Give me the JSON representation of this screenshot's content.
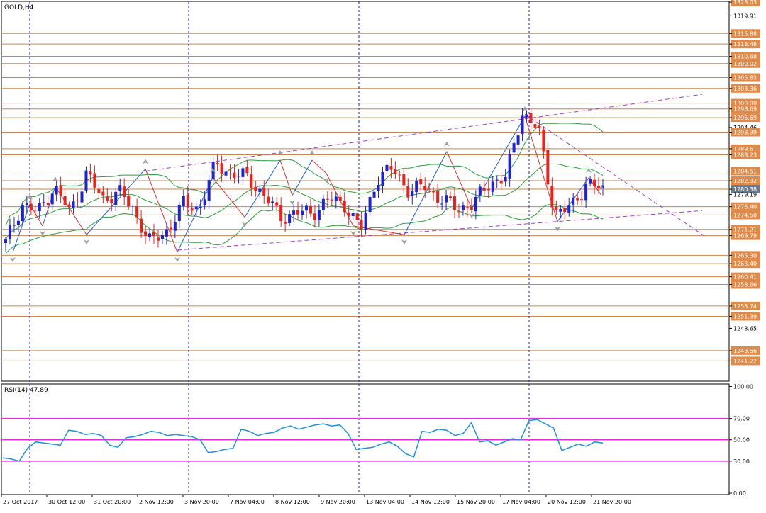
{
  "main_panel": {
    "title": "GOLD,H4",
    "price_ticks": [
      "1323.03",
      "1319.91",
      "1315.88",
      "1313.48",
      "1310.68",
      "1309.02",
      "1305.83",
      "1303.36",
      "1300.00",
      "1298.69",
      "1296.69",
      "1294.46",
      "1293.39",
      "1289.61",
      "1288.23",
      "1284.51",
      "1282.32",
      "1280.38",
      "1279.19",
      "1276.40",
      "1274.50",
      "1271.21",
      "1269.79",
      "1265.30",
      "1263.40",
      "1260.41",
      "1258.66",
      "1253.74",
      "1251.39",
      "1248.65",
      "1243.56",
      "1241.22"
    ],
    "highlighted_price": "1280.38"
  },
  "rsi_panel": {
    "label": "RSI(14) 47.89",
    "ticks": [
      "100.00",
      "70.00",
      "50.00",
      "30.00",
      "0.00"
    ]
  },
  "x_axis_labels": [
    "27 Oct 2017",
    "30 Oct 12:00",
    "31 Oct 20:00",
    "2 Nov 12:00",
    "3 Nov 20:00",
    "7 Nov 04:00",
    "8 Nov 12:00",
    "9 Nov 20:00",
    "13 Nov 04:00",
    "14 Nov 12:00",
    "15 Nov 20:00",
    "17 Nov 04:00",
    "20 Nov 12:00",
    "21 Nov 20:00"
  ],
  "colors": {
    "bull_candle": "#1e22d2",
    "bear_candle": "#e8231c",
    "level_line": "#c8864a",
    "grid_line": "#2020d0",
    "bollinger": "#2e9e3e",
    "zigzag_up": "#1e5bd8",
    "zigzag_down": "#d83030",
    "trendline": "#a040c8",
    "rsi_line": "#1e90e0",
    "rsi_levels": "#e030e0",
    "label_fill": "#e08a4a",
    "fractal": "#a0a0a0"
  },
  "chart_data": [
    {
      "type": "candlestick",
      "title": "GOLD,H4",
      "x": [
        "27 Oct 2017",
        "30 Oct 12:00",
        "31 Oct 20:00",
        "2 Nov 12:00",
        "3 Nov 20:00",
        "7 Nov 04:00",
        "8 Nov 12:00",
        "9 Nov 20:00",
        "13 Nov 04:00",
        "14 Nov 12:00",
        "15 Nov 20:00",
        "17 Nov 04:00",
        "20 Nov 12:00",
        "21 Nov 20:00"
      ],
      "ylim": [
        1236.6,
        1323.2
      ],
      "close_path": [
        1268,
        1277,
        1275,
        1281,
        1275,
        1284,
        1278,
        1280,
        1275,
        1268,
        1271,
        1277,
        1276,
        1286,
        1284,
        1283,
        1279,
        1274,
        1275,
        1275,
        1278,
        1277,
        1271,
        1283,
        1285,
        1280,
        1281,
        1278,
        1276,
        1277,
        1282,
        1283,
        1298,
        1294,
        1275,
        1276,
        1282,
        1280
      ],
      "horizontal_levels": [
        1315.88,
        1313.48,
        1310.68,
        1309.02,
        1305.83,
        1303.36,
        1300.0,
        1298.69,
        1296.69,
        1293.39,
        1289.61,
        1288.23,
        1284.51,
        1282.32,
        1280.38,
        1276.4,
        1274.5,
        1271.21,
        1269.79,
        1265.3,
        1263.4,
        1260.41,
        1258.66,
        1253.74,
        1251.39,
        1243.56,
        1241.22
      ],
      "last_price": 1280.38
    },
    {
      "type": "line",
      "title": "RSI(14) 47.89",
      "ylim": [
        0,
        100
      ],
      "levels": [
        70,
        50,
        30
      ],
      "last_value": 47.89,
      "values": [
        33,
        32,
        30,
        42,
        48,
        47,
        46,
        45,
        59,
        58,
        55,
        56,
        54,
        45,
        43,
        52,
        53,
        55,
        58,
        57,
        54,
        55,
        54,
        53,
        50,
        38,
        39,
        41,
        42,
        60,
        58,
        54,
        56,
        57,
        61,
        63,
        60,
        62,
        64,
        65,
        63,
        64,
        56,
        41,
        42,
        43,
        46,
        48,
        44,
        37,
        34,
        58,
        57,
        60,
        59,
        54,
        56,
        66,
        48,
        49,
        45,
        48,
        51,
        50,
        68,
        69,
        65,
        61,
        40,
        43,
        46,
        44,
        48,
        47
      ]
    }
  ]
}
